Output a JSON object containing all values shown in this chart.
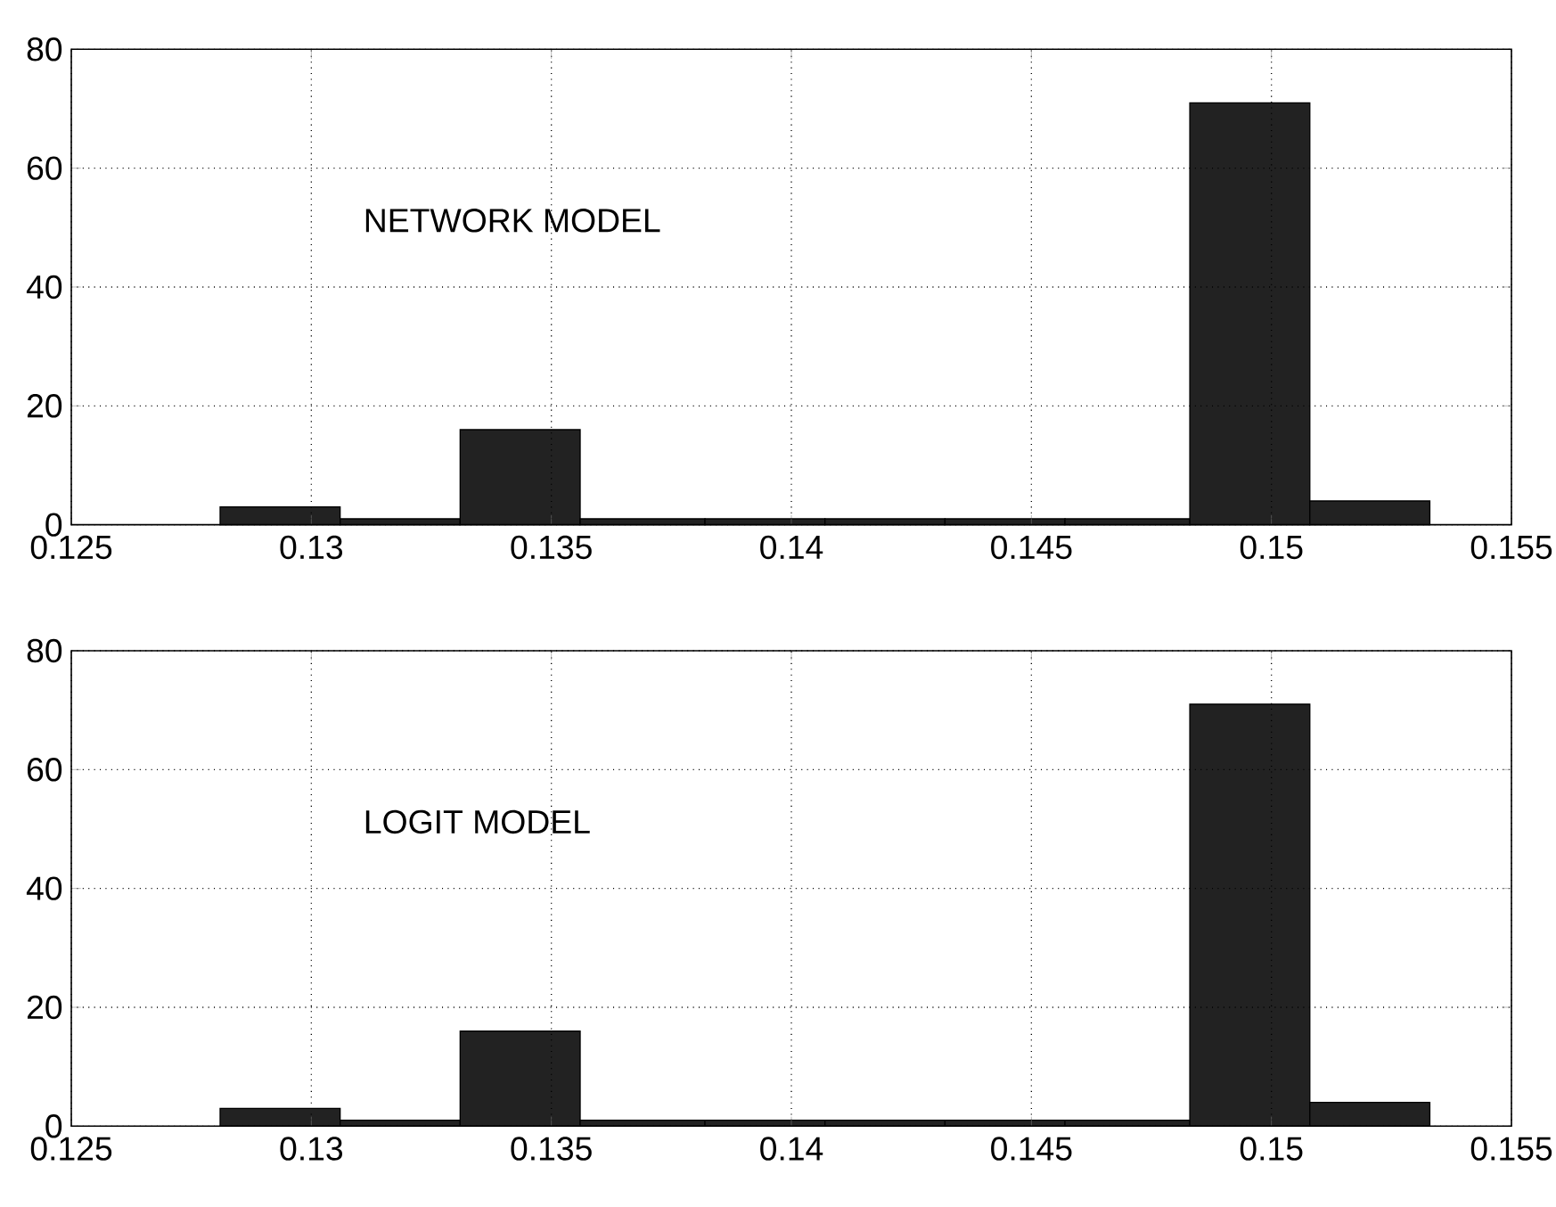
{
  "chart_data": [
    {
      "type": "histogram",
      "bins": [
        0.1281,
        0.1306,
        0.1331,
        0.1356,
        0.1382,
        0.1407,
        0.1432,
        0.1457,
        0.1483,
        0.1508,
        0.1533
      ],
      "values": [
        3,
        1,
        16,
        1,
        1,
        1,
        1,
        1,
        71,
        4
      ],
      "color": "#222222",
      "xlim": [
        0.125,
        0.155
      ],
      "xticks": [
        0.125,
        0.13,
        0.135,
        0.14,
        0.145,
        0.15,
        0.155
      ],
      "ylim": [
        0,
        80
      ],
      "yticks": [
        0,
        20,
        40,
        60,
        80
      ],
      "grid": true,
      "annotations": [
        "NETWORK MODEL"
      ]
    },
    {
      "type": "histogram",
      "bins": [
        0.1281,
        0.1306,
        0.1331,
        0.1356,
        0.1382,
        0.1407,
        0.1432,
        0.1457,
        0.1483,
        0.1508,
        0.1533
      ],
      "values": [
        3,
        1,
        16,
        1,
        1,
        1,
        1,
        1,
        71,
        4
      ],
      "color": "#222222",
      "xlim": [
        0.125,
        0.155
      ],
      "xticks": [
        0.125,
        0.13,
        0.135,
        0.14,
        0.145,
        0.15,
        0.155
      ],
      "ylim": [
        0,
        80
      ],
      "yticks": [
        0,
        20,
        40,
        60,
        80
      ],
      "grid": true,
      "annotations": [
        "LOGIT MODEL"
      ]
    }
  ]
}
